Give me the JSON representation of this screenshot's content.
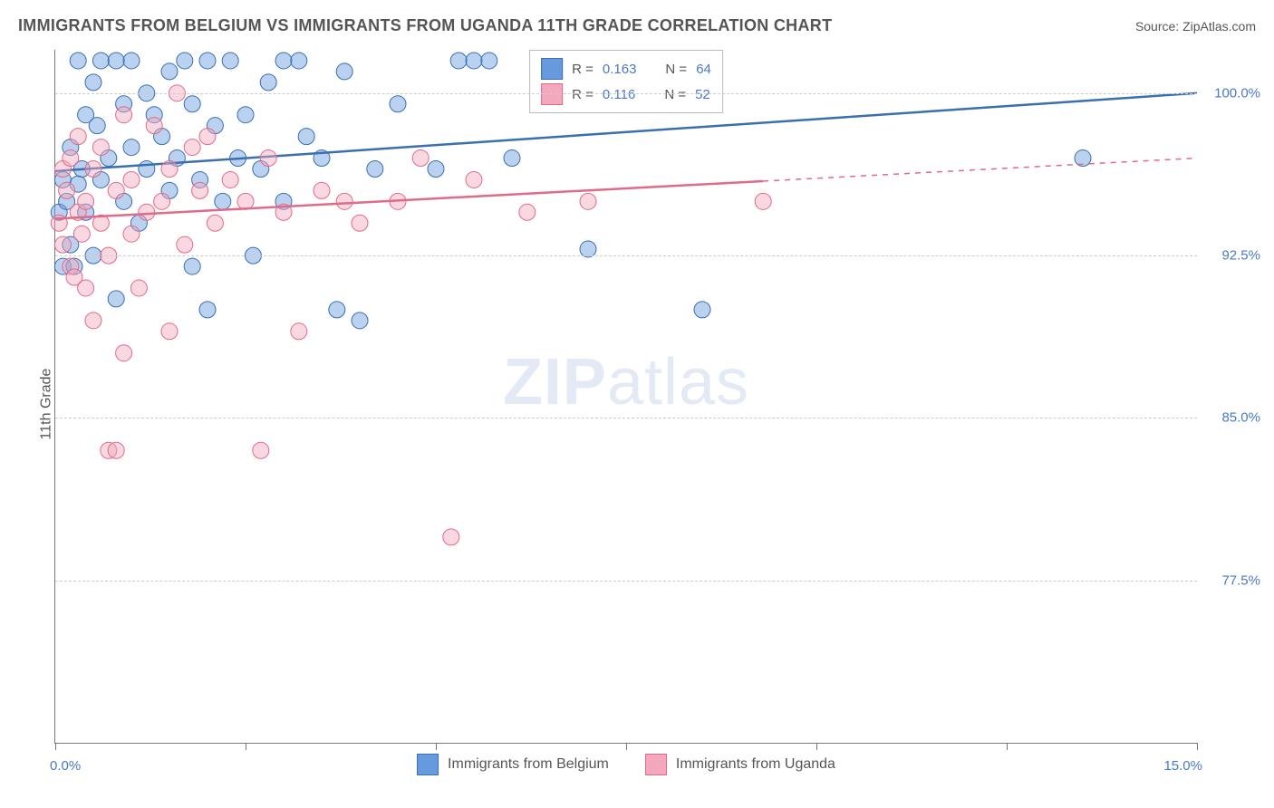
{
  "title": "IMMIGRANTS FROM BELGIUM VS IMMIGRANTS FROM UGANDA 11TH GRADE CORRELATION CHART",
  "source_label": "Source:",
  "source_name": "ZipAtlas.com",
  "ylabel": "11th Grade",
  "watermark_a": "ZIP",
  "watermark_b": "atlas",
  "chart": {
    "type": "scatter",
    "background_color": "#ffffff",
    "grid_color": "#cccccc",
    "axis_color": "#777777",
    "xlim": [
      0,
      15
    ],
    "ylim": [
      70,
      102
    ],
    "yticks": [
      77.5,
      85.0,
      92.5,
      100.0
    ],
    "ytick_labels": [
      "77.5%",
      "85.0%",
      "92.5%",
      "100.0%"
    ],
    "xticks": [
      0,
      2.5,
      5,
      7.5,
      10,
      12.5,
      15
    ],
    "x_start_label": "0.0%",
    "x_end_label": "15.0%",
    "label_color": "#4a78c8",
    "label_fontsize": 15,
    "title_fontsize": 18,
    "marker_radius": 9,
    "marker_opacity": 0.45,
    "series": [
      {
        "name": "Immigrants from Belgium",
        "color": "#6699dd",
        "stroke": "#3a6fb0",
        "r_label": "R =",
        "r_value": "0.163",
        "n_label": "N =",
        "n_value": "64",
        "trend": {
          "y_at_x0": 96.4,
          "y_at_x15": 100.0,
          "solid_xmax": 15.0
        },
        "points": [
          [
            0.05,
            94.5
          ],
          [
            0.1,
            92.0
          ],
          [
            0.1,
            96.0
          ],
          [
            0.15,
            95.0
          ],
          [
            0.2,
            93.0
          ],
          [
            0.2,
            97.5
          ],
          [
            0.25,
            92.0
          ],
          [
            0.3,
            101.5
          ],
          [
            0.3,
            95.8
          ],
          [
            0.35,
            96.5
          ],
          [
            0.4,
            94.5
          ],
          [
            0.4,
            99.0
          ],
          [
            0.5,
            92.5
          ],
          [
            0.5,
            100.5
          ],
          [
            0.55,
            98.5
          ],
          [
            0.6,
            101.5
          ],
          [
            0.6,
            96.0
          ],
          [
            0.7,
            97.0
          ],
          [
            0.8,
            101.5
          ],
          [
            0.8,
            90.5
          ],
          [
            0.9,
            99.5
          ],
          [
            0.9,
            95.0
          ],
          [
            1.0,
            97.5
          ],
          [
            1.0,
            101.5
          ],
          [
            1.1,
            94.0
          ],
          [
            1.2,
            100.0
          ],
          [
            1.2,
            96.5
          ],
          [
            1.3,
            99.0
          ],
          [
            1.4,
            98.0
          ],
          [
            1.5,
            101.0
          ],
          [
            1.5,
            95.5
          ],
          [
            1.6,
            97.0
          ],
          [
            1.7,
            101.5
          ],
          [
            1.8,
            99.5
          ],
          [
            1.8,
            92.0
          ],
          [
            1.9,
            96.0
          ],
          [
            2.0,
            101.5
          ],
          [
            2.0,
            90.0
          ],
          [
            2.1,
            98.5
          ],
          [
            2.2,
            95.0
          ],
          [
            2.3,
            101.5
          ],
          [
            2.4,
            97.0
          ],
          [
            2.5,
            99.0
          ],
          [
            2.6,
            92.5
          ],
          [
            2.7,
            96.5
          ],
          [
            2.8,
            100.5
          ],
          [
            3.0,
            101.5
          ],
          [
            3.0,
            95.0
          ],
          [
            3.2,
            101.5
          ],
          [
            3.3,
            98.0
          ],
          [
            3.5,
            97.0
          ],
          [
            3.7,
            90.0
          ],
          [
            3.8,
            101.0
          ],
          [
            4.0,
            89.5
          ],
          [
            4.2,
            96.5
          ],
          [
            4.5,
            99.5
          ],
          [
            5.0,
            96.5
          ],
          [
            5.3,
            101.5
          ],
          [
            5.5,
            101.5
          ],
          [
            5.7,
            101.5
          ],
          [
            6.0,
            97.0
          ],
          [
            7.0,
            92.8
          ],
          [
            8.5,
            90.0
          ],
          [
            13.5,
            97.0
          ]
        ]
      },
      {
        "name": "Immigrants from Uganda",
        "color": "#f4a8bd",
        "stroke": "#e06a8a",
        "r_label": "R =",
        "r_value": "0.116",
        "n_label": "N =",
        "n_value": "52",
        "trend": {
          "y_at_x0": 94.2,
          "y_at_x15": 97.0,
          "solid_xmax": 9.3
        },
        "points": [
          [
            0.05,
            94.0
          ],
          [
            0.1,
            93.0
          ],
          [
            0.1,
            96.5
          ],
          [
            0.15,
            95.5
          ],
          [
            0.2,
            92.0
          ],
          [
            0.2,
            97.0
          ],
          [
            0.25,
            91.5
          ],
          [
            0.3,
            94.5
          ],
          [
            0.3,
            98.0
          ],
          [
            0.35,
            93.5
          ],
          [
            0.4,
            95.0
          ],
          [
            0.4,
            91.0
          ],
          [
            0.5,
            96.5
          ],
          [
            0.5,
            89.5
          ],
          [
            0.6,
            94.0
          ],
          [
            0.6,
            97.5
          ],
          [
            0.7,
            92.5
          ],
          [
            0.7,
            83.5
          ],
          [
            0.8,
            95.5
          ],
          [
            0.8,
            83.5
          ],
          [
            0.9,
            99.0
          ],
          [
            0.9,
            88.0
          ],
          [
            1.0,
            93.5
          ],
          [
            1.0,
            96.0
          ],
          [
            1.1,
            91.0
          ],
          [
            1.2,
            94.5
          ],
          [
            1.3,
            98.5
          ],
          [
            1.4,
            95.0
          ],
          [
            1.5,
            89.0
          ],
          [
            1.5,
            96.5
          ],
          [
            1.6,
            100.0
          ],
          [
            1.7,
            93.0
          ],
          [
            1.8,
            97.5
          ],
          [
            1.9,
            95.5
          ],
          [
            2.0,
            98.0
          ],
          [
            2.1,
            94.0
          ],
          [
            2.3,
            96.0
          ],
          [
            2.5,
            95.0
          ],
          [
            2.7,
            83.5
          ],
          [
            2.8,
            97.0
          ],
          [
            3.0,
            94.5
          ],
          [
            3.2,
            89.0
          ],
          [
            3.5,
            95.5
          ],
          [
            3.8,
            95.0
          ],
          [
            4.0,
            94.0
          ],
          [
            4.5,
            95.0
          ],
          [
            4.8,
            97.0
          ],
          [
            5.2,
            79.5
          ],
          [
            5.5,
            96.0
          ],
          [
            6.2,
            94.5
          ],
          [
            7.0,
            95.0
          ],
          [
            9.3,
            95.0
          ]
        ]
      }
    ]
  },
  "bottom_legend": [
    "Immigrants from Belgium",
    "Immigrants from Uganda"
  ]
}
